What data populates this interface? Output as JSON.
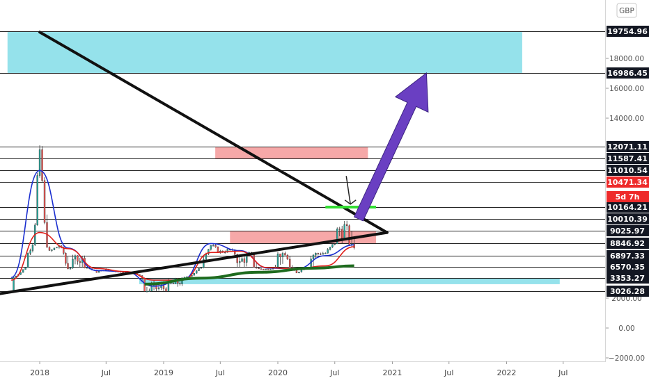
{
  "chart_data": {
    "type": "candlestick",
    "currency": "GBP",
    "y_axis": {
      "ticks": [
        -2000,
        0,
        2000,
        14000,
        16000,
        18000
      ],
      "tick_labels": [
        "−2000.00",
        "0.00",
        "2000.00",
        "14000.00",
        "16000.00",
        "18000.00"
      ],
      "scale_segments": [
        [
          -2000,
          515
        ],
        [
          2000,
          429
        ],
        [
          3026.28,
          419
        ],
        [
          3353.27,
          400
        ],
        [
          6570.35,
          384
        ],
        [
          6897.33,
          368
        ],
        [
          8846.92,
          350
        ],
        [
          9025.97,
          332
        ],
        [
          10010.39,
          315
        ],
        [
          10164.21,
          298
        ],
        [
          10471.34,
          262
        ],
        [
          11010.54,
          245
        ],
        [
          11587.41,
          228
        ],
        [
          12071.11,
          211
        ],
        [
          14000,
          170
        ],
        [
          16000,
          127
        ],
        [
          16986.45,
          105
        ],
        [
          18000,
          84
        ],
        [
          19754.96,
          45
        ]
      ]
    },
    "x_axis": {
      "ticks": [
        "2017-12-01",
        "2018-07-01",
        "2019-01-01",
        "2019-07-01",
        "2020-01-01",
        "2020-07-01",
        "2021-01-01",
        "2021-07-01",
        "2022-01-01",
        "2022-07-01"
      ],
      "tick_labels": [
        "2018",
        "Jul",
        "2019",
        "Jul",
        "2020",
        "Jul",
        "2021",
        "Jul",
        "2022",
        "Jul"
      ]
    },
    "price_levels": [
      {
        "value": 19754.96,
        "label": "19754.96",
        "style": "dark"
      },
      {
        "value": 16986.45,
        "label": "16986.45",
        "style": "dark"
      },
      {
        "value": 12071.11,
        "label": "12071.11",
        "style": "dark"
      },
      {
        "value": 11587.41,
        "label": "11587.41",
        "style": "dark"
      },
      {
        "value": 11010.54,
        "label": "11010.54",
        "style": "dark"
      },
      {
        "value": 10471.34,
        "label": "10471.34",
        "style": "red"
      },
      {
        "value": 10164.21,
        "label": "10164.21",
        "style": "dark"
      },
      {
        "value": 10010.39,
        "label": "10010.39",
        "style": "dark"
      },
      {
        "value": 9025.97,
        "label": "9025.97",
        "style": "dark"
      },
      {
        "value": 8846.92,
        "label": "8846.92",
        "style": "dark"
      },
      {
        "value": 6897.33,
        "label": "6897.33",
        "style": "dark"
      },
      {
        "value": 6570.35,
        "label": "6570.35",
        "style": "dark"
      },
      {
        "value": 3353.27,
        "label": "3353.27",
        "style": "dark"
      },
      {
        "value": 3026.28,
        "label": "3026.28",
        "style": "dark"
      }
    ],
    "countdown_label": "5d 7h",
    "series": [
      {
        "name": "price",
        "type": "candlestick",
        "up_color": "#26a69a",
        "down_color": "#ef5350",
        "x": [
          "2017-09-01",
          "2017-10-01",
          "2017-11-01",
          "2017-12-01",
          "2018-01-01",
          "2018-02-01",
          "2018-03-01",
          "2018-04-01",
          "2018-05-01",
          "2018-06-01",
          "2018-07-01",
          "2018-08-01",
          "2018-09-01",
          "2018-10-01",
          "2018-11-01",
          "2018-12-01",
          "2019-01-01",
          "2019-02-01",
          "2019-03-01",
          "2019-04-01",
          "2019-05-01",
          "2019-06-01",
          "2019-07-01",
          "2019-08-01",
          "2019-09-01",
          "2019-10-01",
          "2019-11-01",
          "2019-12-01",
          "2020-01-01",
          "2020-02-01",
          "2020-03-01",
          "2020-04-01",
          "2020-05-01",
          "2020-06-01",
          "2020-07-01",
          "2020-08-01",
          "2020-09-01"
        ],
        "close": [
          3026,
          5000,
          8000,
          11500,
          7500,
          8500,
          6100,
          7000,
          6400,
          5100,
          5800,
          5300,
          5000,
          4800,
          3000,
          3100,
          3100,
          3200,
          3300,
          4200,
          6500,
          8500,
          7500,
          7800,
          6600,
          7200,
          6000,
          5800,
          7100,
          6900,
          4900,
          6500,
          7200,
          7300,
          8900,
          9400,
          8200
        ]
      },
      {
        "name": "fast moving average",
        "type": "line",
        "color": "#1a2ecf",
        "x": [
          "2017-09-01",
          "2017-12-01",
          "2018-03-01",
          "2018-06-01",
          "2018-09-01",
          "2018-12-01",
          "2019-03-01",
          "2019-06-01",
          "2019-09-01",
          "2019-12-01",
          "2020-03-01",
          "2020-06-01",
          "2020-09-01"
        ],
        "values": [
          3500,
          11000,
          8100,
          5500,
          5200,
          3150,
          3300,
          8800,
          7700,
          6200,
          6000,
          6900,
          8600
        ]
      },
      {
        "name": "slow moving average",
        "type": "line",
        "color": "#e0201b",
        "x": [
          "2017-09-01",
          "2017-12-01",
          "2018-03-01",
          "2018-06-01",
          "2018-09-01",
          "2018-12-01",
          "2019-03-01",
          "2019-06-01",
          "2019-09-01",
          "2019-12-01",
          "2020-03-01",
          "2020-06-01",
          "2020-09-01"
        ],
        "values": [
          3300,
          9000,
          8000,
          6100,
          5200,
          3300,
          3300,
          7400,
          7600,
          6300,
          6000,
          6600,
          8300
        ]
      },
      {
        "name": "long moving average",
        "type": "line",
        "color": "#1e6b1e",
        "x": [
          "2018-11-01",
          "2019-05-01",
          "2019-11-01",
          "2020-05-01",
          "2020-09-01"
        ],
        "values": [
          3200,
          3350,
          5000,
          6200,
          6600
        ]
      }
    ],
    "zones": [
      {
        "type": "resistance",
        "color": "#8fe0ea",
        "x": [
          "2017-08-20",
          "2022-02-20"
        ],
        "y": [
          16986.45,
          19754.96
        ]
      },
      {
        "type": "resistance",
        "color": "#f5a3a3",
        "x": [
          "2019-06-15",
          "2020-10-15"
        ],
        "y": [
          11587.41,
          12071.11
        ]
      },
      {
        "type": "support",
        "color": "#f5a3a3",
        "x": [
          "2019-08-01",
          "2020-11-10"
        ],
        "y": [
          8846.92,
          9025.97
        ]
      },
      {
        "type": "support",
        "color": "#8fe0ea",
        "x": [
          "2018-10-15",
          "2022-06-20"
        ],
        "y": [
          3200,
          3353.27
        ]
      }
    ],
    "trendlines": [
      {
        "color": "#111111",
        "points": [
          [
            "2017-12-01",
            19700
          ],
          [
            "2020-12-15",
            9000
          ]
        ]
      },
      {
        "color": "#111111",
        "points": [
          [
            "2017-06-01",
            2250
          ],
          [
            "2020-12-15",
            9000
          ]
        ]
      }
    ],
    "markers": [
      {
        "type": "horizontal-segment",
        "color": "#33dd33",
        "x": [
          "2020-06-01",
          "2020-11-10"
        ],
        "y": 10164.21
      },
      {
        "type": "down-arrow",
        "color": "#222222",
        "x": "2020-08-20",
        "y_from": 10750,
        "y_to": 10200
      },
      {
        "type": "up-arrow",
        "color": "#6a3fc2",
        "x": [
          "2020-09-15",
          "2021-04-20"
        ],
        "y": [
          10010.39,
          16986.45
        ]
      }
    ],
    "grid": false,
    "legend": "none"
  }
}
